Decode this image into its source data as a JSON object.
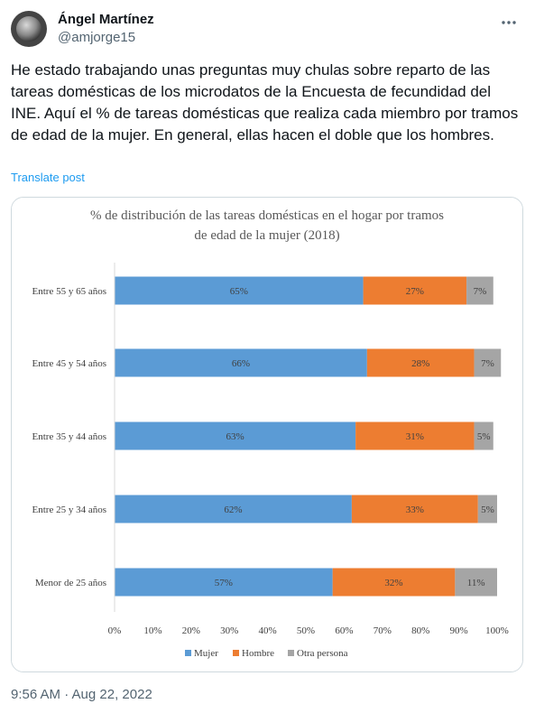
{
  "author": {
    "name": "Ángel Martínez",
    "handle": "@amjorge15"
  },
  "tweet": {
    "text": "He estado trabajando unas preguntas muy chulas sobre reparto de las tareas domésticas de los microdatos de la Encuesta de fecundidad del INE. Aquí el % de tareas domésticas que realiza cada miembro por tramos de edad de la mujer. En general, ellas hacen el doble que los hombres.",
    "translate_label": "Translate post",
    "timestamp": "9:56 AM · Aug 22, 2022"
  },
  "icons": {
    "more": "more-horizontal-icon"
  },
  "colors": {
    "mujer": "#5b9bd5",
    "hombre": "#ed7d31",
    "otra": "#a5a5a5",
    "link": "#1d9bf0"
  },
  "chart_data": {
    "type": "bar",
    "orientation": "horizontal",
    "stacked": true,
    "title": "% de distribución de las tareas domésticas en el hogar por tramos de edad de la mujer (2018)",
    "title_lines": [
      "% de distribución de las tareas domésticas en el hogar por tramos",
      "de edad de la mujer (2018)"
    ],
    "categories": [
      "Entre 55 y 65 años",
      "Entre 45 y 54 años",
      "Entre 35 y 44 años",
      "Entre 25 y 34 años",
      "Menor de 25 años"
    ],
    "series": [
      {
        "name": "Mujer",
        "values": [
          65,
          66,
          63,
          62,
          57
        ],
        "labels": [
          "65%",
          "66%",
          "63%",
          "62%",
          "57%"
        ]
      },
      {
        "name": "Hombre",
        "values": [
          27,
          28,
          31,
          33,
          32
        ],
        "labels": [
          "27%",
          "28%",
          "31%",
          "33%",
          "32%"
        ]
      },
      {
        "name": "Otra persona",
        "values": [
          7,
          7,
          5,
          5,
          11
        ],
        "labels": [
          "7%",
          "7%",
          "5%",
          "5%",
          "11%"
        ]
      }
    ],
    "xlim": [
      0,
      100
    ],
    "xticks": [
      "0%",
      "10%",
      "20%",
      "30%",
      "40%",
      "50%",
      "60%",
      "70%",
      "80%",
      "90%",
      "100%"
    ],
    "grid": false,
    "legend": "bottom"
  }
}
